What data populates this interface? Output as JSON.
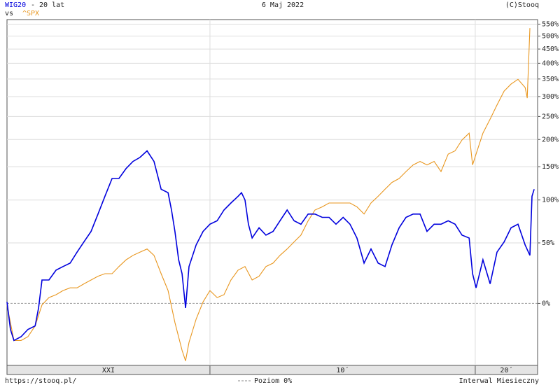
{
  "chart_data": {
    "type": "line",
    "date": "6 Maj 2022",
    "period": "- 20 lat",
    "copyright": "(C)Stooq",
    "vs": "vs",
    "source": "https://stooq.pl/",
    "zero_line_label": "Poziom 0%",
    "interval": "Interwal Miesieczny",
    "yscale": "log",
    "grid": true,
    "xlim": [
      2002.35,
      2022.35
    ],
    "ylim": [
      -34,
      570
    ],
    "yticks": [
      {
        "value": 0,
        "label": "0%"
      },
      {
        "value": 50,
        "label": "50%"
      },
      {
        "value": 100,
        "label": "100%"
      },
      {
        "value": 150,
        "label": "150%"
      },
      {
        "value": 200,
        "label": "200%"
      },
      {
        "value": 250,
        "label": "250%"
      },
      {
        "value": 300,
        "label": "300%"
      },
      {
        "value": 350,
        "label": "350%"
      },
      {
        "value": 400,
        "label": "400%"
      },
      {
        "value": 450,
        "label": "450%"
      },
      {
        "value": 500,
        "label": "500%"
      },
      {
        "value": 550,
        "label": "550%"
      }
    ],
    "x_periods": [
      {
        "label": "XXI",
        "start": 2000,
        "end": 2010
      },
      {
        "label": "10´",
        "start": 2010,
        "end": 2020
      },
      {
        "label": "20´",
        "start": 2020,
        "end": 2030
      }
    ],
    "series": [
      {
        "name": "WIG20",
        "color": "#0000dd",
        "x": [
          2002.35,
          2002.48,
          2002.61,
          2002.88,
          2003.14,
          2003.41,
          2003.54,
          2003.67,
          2003.93,
          2004.2,
          2004.46,
          2004.73,
          2004.99,
          2005.25,
          2005.52,
          2005.78,
          2006.04,
          2006.31,
          2006.57,
          2006.84,
          2007.1,
          2007.36,
          2007.63,
          2007.89,
          2008.16,
          2008.42,
          2008.55,
          2008.68,
          2008.82,
          2008.95,
          2009.08,
          2009.21,
          2009.48,
          2009.74,
          2010.0,
          2010.27,
          2010.53,
          2010.79,
          2011.06,
          2011.19,
          2011.32,
          2011.45,
          2011.59,
          2011.85,
          2012.11,
          2012.38,
          2012.64,
          2012.91,
          2013.17,
          2013.43,
          2013.7,
          2013.96,
          2014.23,
          2014.49,
          2014.75,
          2015.02,
          2015.28,
          2015.54,
          2015.81,
          2016.07,
          2016.34,
          2016.6,
          2016.86,
          2017.13,
          2017.39,
          2017.66,
          2017.92,
          2018.18,
          2018.45,
          2018.71,
          2018.98,
          2019.24,
          2019.5,
          2019.77,
          2019.9,
          2020.03,
          2020.29,
          2020.56,
          2020.82,
          2021.09,
          2021.35,
          2021.61,
          2021.88,
          2022.06,
          2022.14,
          2022.22
        ],
        "values": [
          1,
          -16,
          -22,
          -20,
          -16,
          -14,
          -3,
          17,
          17,
          25,
          28,
          31,
          41,
          51,
          62,
          82,
          105,
          131,
          131,
          147,
          159,
          166,
          178,
          159,
          115,
          110,
          87,
          62,
          34,
          22,
          -3,
          28,
          48,
          62,
          70,
          74,
          87,
          96,
          105,
          110,
          100,
          70,
          55,
          66,
          58,
          62,
          74,
          87,
          74,
          70,
          82,
          82,
          78,
          78,
          70,
          78,
          70,
          55,
          31,
          44,
          31,
          28,
          48,
          66,
          78,
          82,
          82,
          62,
          70,
          70,
          74,
          70,
          58,
          55,
          22,
          11,
          34,
          14,
          41,
          51,
          66,
          70,
          48,
          38,
          105,
          115
        ]
      },
      {
        "name": "^SPX",
        "color": "#e8961e",
        "x": [
          2002.35,
          2002.61,
          2002.88,
          2003.14,
          2003.41,
          2003.67,
          2003.93,
          2004.2,
          2004.46,
          2004.73,
          2004.99,
          2005.25,
          2005.52,
          2005.78,
          2006.04,
          2006.31,
          2006.57,
          2006.84,
          2007.1,
          2007.36,
          2007.63,
          2007.89,
          2008.16,
          2008.42,
          2008.68,
          2008.95,
          2009.08,
          2009.21,
          2009.48,
          2009.74,
          2010.0,
          2010.27,
          2010.53,
          2010.79,
          2011.06,
          2011.32,
          2011.59,
          2011.85,
          2012.11,
          2012.38,
          2012.64,
          2012.91,
          2013.17,
          2013.43,
          2013.7,
          2013.96,
          2014.23,
          2014.49,
          2014.75,
          2015.02,
          2015.28,
          2015.54,
          2015.81,
          2016.07,
          2016.34,
          2016.6,
          2016.86,
          2017.13,
          2017.39,
          2017.66,
          2017.92,
          2018.18,
          2018.45,
          2018.71,
          2018.98,
          2019.24,
          2019.5,
          2019.77,
          2019.9,
          2020.03,
          2020.29,
          2020.56,
          2020.82,
          2021.09,
          2021.35,
          2021.61,
          2021.88,
          2021.96,
          2022.06
        ],
        "values": [
          -1,
          -22,
          -22,
          -20,
          -14,
          -1,
          4,
          6,
          9,
          11,
          11,
          14,
          17,
          20,
          22,
          22,
          28,
          34,
          38,
          41,
          44,
          38,
          22,
          9,
          -12,
          -27,
          -32,
          -23,
          -10,
          1,
          9,
          4,
          6,
          17,
          25,
          28,
          17,
          20,
          28,
          31,
          38,
          44,
          51,
          58,
          74,
          87,
          91,
          96,
          96,
          96,
          96,
          91,
          82,
          96,
          105,
          115,
          125,
          131,
          142,
          153,
          159,
          153,
          159,
          142,
          172,
          178,
          199,
          213,
          153,
          172,
          213,
          244,
          278,
          315,
          335,
          349,
          325,
          296,
          533
        ]
      }
    ]
  }
}
